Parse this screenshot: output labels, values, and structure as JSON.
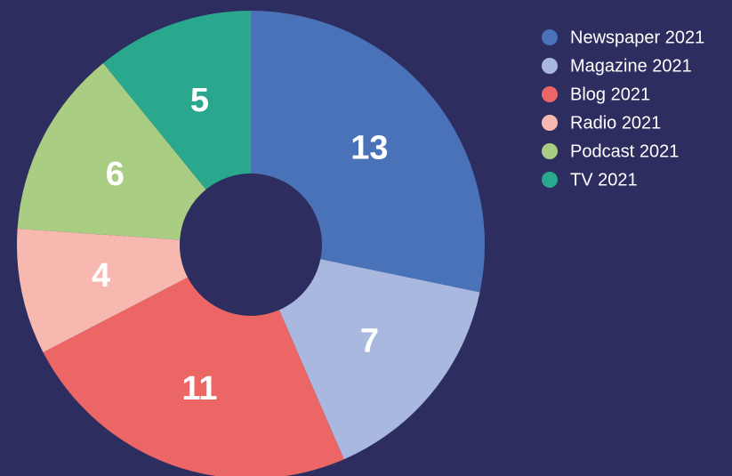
{
  "chart_data": {
    "type": "donut",
    "categories": [
      "Newspaper 2021",
      "Magazine 2021",
      "Blog 2021",
      "Radio 2021",
      "Podcast 2021",
      "TV 2021"
    ],
    "values": [
      13,
      7,
      11,
      4,
      6,
      5
    ],
    "colors": [
      "#4a72b8",
      "#a8b8de",
      "#ec6666",
      "#f7b8b0",
      "#a9cd82",
      "#2aa88e"
    ],
    "legend": "top-right"
  }
}
